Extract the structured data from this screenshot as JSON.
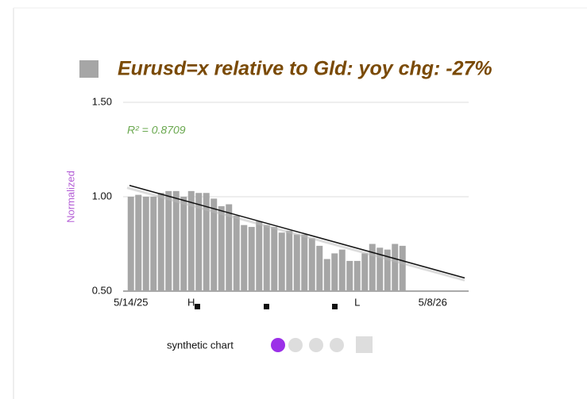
{
  "chart_data": {
    "type": "bar",
    "title": "Eurusd=x relative to Gld:  yoy chg: -27%",
    "annotation": "R² = 0.8709",
    "ylabel": "Normalized",
    "footer": "synthetic chart",
    "color": "#a6a6a6",
    "categories": [
      "5/14/25",
      null,
      null,
      null,
      null,
      null,
      null,
      null,
      null,
      null,
      null,
      null,
      null,
      null,
      null,
      null,
      null,
      null,
      null,
      null,
      null,
      null,
      null,
      null,
      null,
      null,
      null,
      null,
      null,
      null,
      null,
      null,
      null,
      null,
      null,
      null,
      null,
      null,
      null,
      null,
      "5/8/26"
    ],
    "values": [
      1.0,
      1.01,
      1.0,
      1.0,
      1.02,
      1.03,
      1.03,
      1.0,
      1.03,
      1.02,
      1.02,
      0.99,
      0.95,
      0.96,
      0.9,
      0.85,
      0.84,
      0.87,
      0.85,
      0.84,
      0.81,
      0.82,
      0.8,
      0.8,
      0.78,
      0.74,
      0.67,
      0.7,
      0.72,
      0.66,
      0.66,
      0.7,
      0.75,
      0.73,
      0.72,
      0.75,
      0.74,
      null,
      null,
      null,
      null
    ],
    "trendline": [
      1.06,
      0.57
    ],
    "markers": [
      {
        "label": "H",
        "index": 8
      },
      {
        "label": "L",
        "index": 30
      }
    ],
    "ylim": [
      0.5,
      1.5
    ],
    "yticks": [
      {
        "value": 0.5,
        "label": "0.50"
      },
      {
        "value": 1.0,
        "label": "1.00"
      },
      {
        "value": 1.5,
        "label": "1.50"
      }
    ],
    "grid": true
  }
}
